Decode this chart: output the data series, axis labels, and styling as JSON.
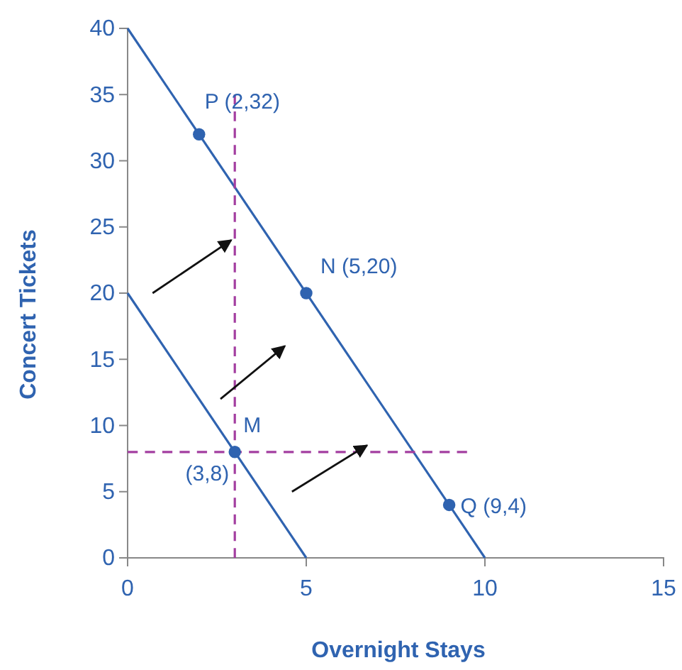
{
  "chart_data": {
    "type": "line",
    "xlabel": "Overnight Stays",
    "ylabel": "Concert Tickets",
    "xlim": [
      0,
      15
    ],
    "xticks": [
      0,
      5,
      10,
      15
    ],
    "ylim": [
      0,
      40
    ],
    "yticks": [
      0,
      5,
      10,
      15,
      20,
      25,
      30,
      35,
      40
    ],
    "grid": false,
    "series": [
      {
        "color": "#2f63b0",
        "x": [
          0,
          10
        ],
        "values": [
          40,
          0
        ],
        "marker": "none",
        "line_style": "solid"
      },
      {
        "color": "#2f63b0",
        "x": [
          0,
          5
        ],
        "values": [
          20,
          0
        ],
        "marker": "none",
        "line_style": "solid"
      },
      {
        "color": "#a33ea0",
        "x": [
          3,
          3
        ],
        "values": [
          0,
          35
        ],
        "marker": "none",
        "line_style": "dashed"
      },
      {
        "color": "#a33ea0",
        "x": [
          0,
          9.5
        ],
        "values": [
          8,
          8
        ],
        "marker": "none",
        "line_style": "dashed"
      },
      {
        "type": "scatter",
        "color": "#2f63b0",
        "x": [
          2,
          5,
          9,
          3
        ],
        "values": [
          32,
          20,
          4,
          8
        ],
        "marker": "circle"
      }
    ],
    "annotations": [
      {
        "text": "P (2,32)",
        "x": 2,
        "y": 32
      },
      {
        "text": "N (5,20)",
        "x": 5,
        "y": 20
      },
      {
        "text": "Q (9,4)",
        "x": 9,
        "y": 4
      },
      {
        "text": "M",
        "x": 3,
        "y": 8
      },
      {
        "text": "(3,8)",
        "x": 3,
        "y": 8
      }
    ]
  }
}
